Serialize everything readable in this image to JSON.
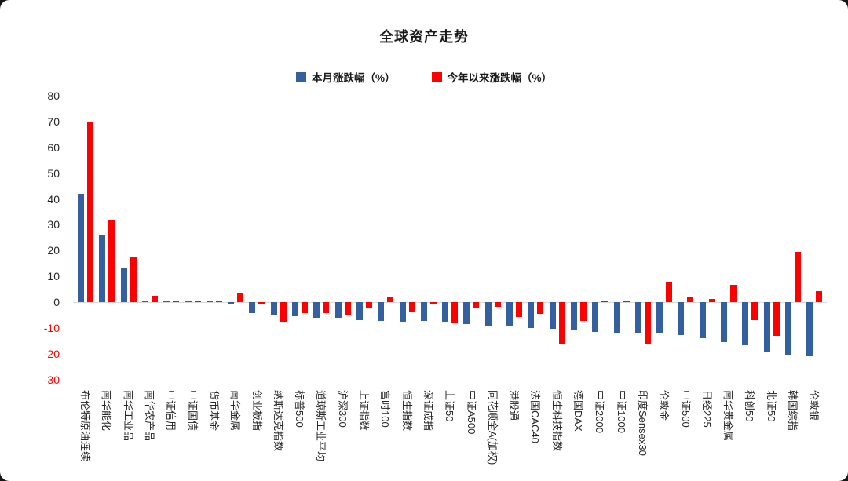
{
  "chart_data": {
    "type": "bar",
    "title": "全球资产走势",
    "grid": false,
    "legend_position": "top",
    "ylim": [
      -30,
      80
    ],
    "yticks": [
      80,
      70,
      60,
      50,
      40,
      30,
      20,
      10,
      0,
      -10,
      -20,
      -30
    ],
    "axis_text_color": "#262626",
    "negative_tick_color": "#ff0000",
    "zero_line_color": "#d9d9d9",
    "categories": [
      "布伦特原油连续",
      "南华能化",
      "南华工业品",
      "南华农产品",
      "中证信用",
      "中证国债",
      "货币基金",
      "南华金属",
      "创业板指",
      "纳斯达克指数",
      "标普500",
      "道琼斯工业平均",
      "沪深300",
      "上证指数",
      "富时100",
      "恒生指数",
      "深证成指",
      "上证50",
      "中证A500",
      "同花顺全A(加权)",
      "港股通",
      "法国CAC40",
      "恒生科技指数",
      "德国DAX",
      "中证2000",
      "中证1000",
      "印度Sensex30",
      "伦敦金",
      "中证500",
      "日经225",
      "南华贵金属",
      "科创50",
      "北证50",
      "韩国综指",
      "伦敦银"
    ],
    "series": [
      {
        "name": "本月涨跌幅（%）",
        "color": "#35609f",
        "values": [
          42,
          26,
          13,
          0.5,
          0.3,
          0.1,
          0.1,
          -1,
          -4.3,
          -5.3,
          -5.6,
          -6,
          -6.1,
          -7.1,
          -7.4,
          -7.6,
          -7.4,
          -7.6,
          -8.4,
          -9.1,
          -9.5,
          -10,
          -10.4,
          -11,
          -11.7,
          -12,
          -12,
          -12.2,
          -12.9,
          -14,
          -15.4,
          -16.6,
          -19.1,
          -20.3,
          -21
        ]
      },
      {
        "name": "今年以来涨跌幅（%）",
        "color": "#ff0000",
        "values": [
          70,
          32,
          17.5,
          2.5,
          0.6,
          0.7,
          0.2,
          3.5,
          -1,
          -8,
          -4.4,
          -4.4,
          -5.3,
          -2.5,
          2.2,
          -3.9,
          -0.8,
          -8.1,
          -2.5,
          -1.8,
          -5.9,
          -4.6,
          -16.3,
          -7.3,
          0.7,
          0.1,
          -16.3,
          7.6,
          1.7,
          1.2,
          6.6,
          -7.1,
          -13.2,
          19.5,
          4.4
        ]
      }
    ]
  }
}
